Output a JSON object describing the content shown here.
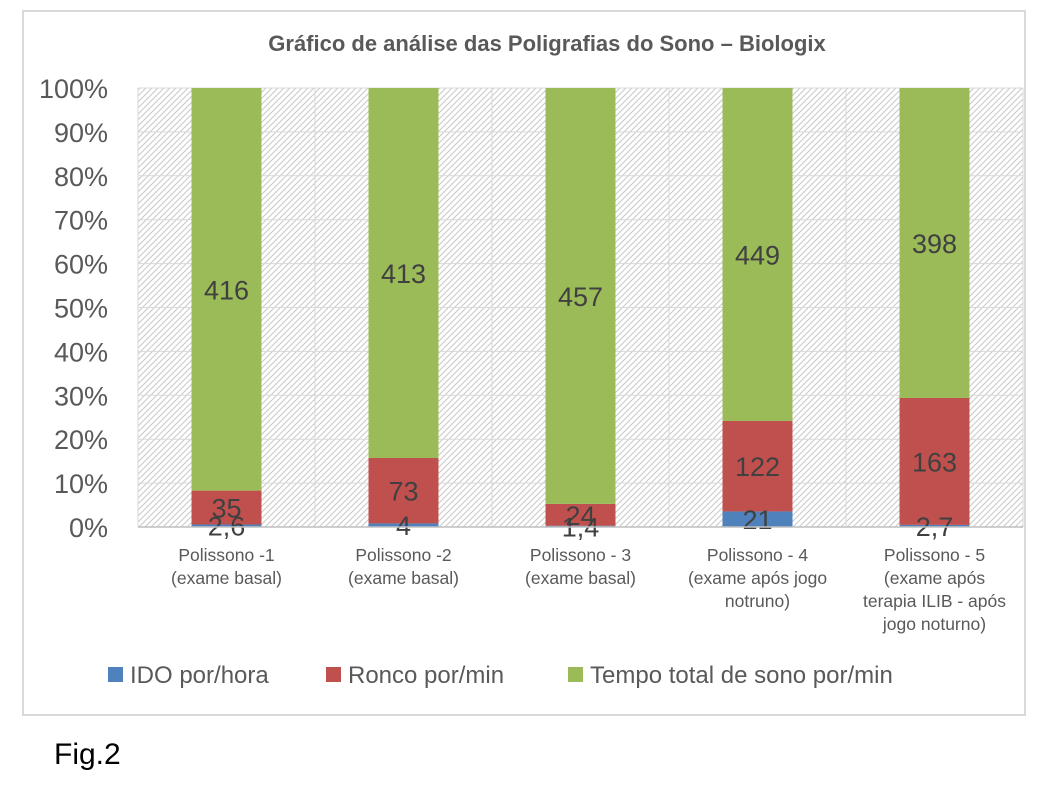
{
  "figure_caption": "Fig.2",
  "chart_data": {
    "type": "bar",
    "stacked": "percent",
    "title": "Gráfico de análise das Poligrafias do Sono – Biologix",
    "categories": [
      [
        "Polissono -1",
        "(exame basal)"
      ],
      [
        "Polissono -2",
        "(exame basal)"
      ],
      [
        "Polissono - 3",
        "(exame basal)"
      ],
      [
        "Polissono  - 4",
        "(exame após jogo",
        "notruno)"
      ],
      [
        "Polissono - 5",
        "(exame após",
        "terapia ILIB - após",
        "jogo noturno)"
      ]
    ],
    "series": [
      {
        "name": "IDO por/hora",
        "values": [
          2.6,
          4,
          1.4,
          21,
          2.7
        ],
        "labels": [
          "2,6",
          "4",
          "1,4",
          "21",
          "2,7"
        ],
        "color": "#4f81bd"
      },
      {
        "name": "Ronco por/min",
        "values": [
          35,
          73,
          24,
          122,
          163
        ],
        "labels": [
          "35",
          "73",
          "24",
          "122",
          "163"
        ],
        "color": "#c0504d"
      },
      {
        "name": "Tempo total de sono por/min",
        "values": [
          416,
          413,
          457,
          449,
          398
        ],
        "labels": [
          "416",
          "413",
          "457",
          "449",
          "398"
        ],
        "color": "#9bbb59"
      }
    ],
    "yticks": [
      "0%",
      "10%",
      "20%",
      "30%",
      "40%",
      "50%",
      "60%",
      "70%",
      "80%",
      "90%",
      "100%"
    ],
    "ylim": [
      0,
      100
    ],
    "grid": true,
    "legend_position": "bottom"
  }
}
